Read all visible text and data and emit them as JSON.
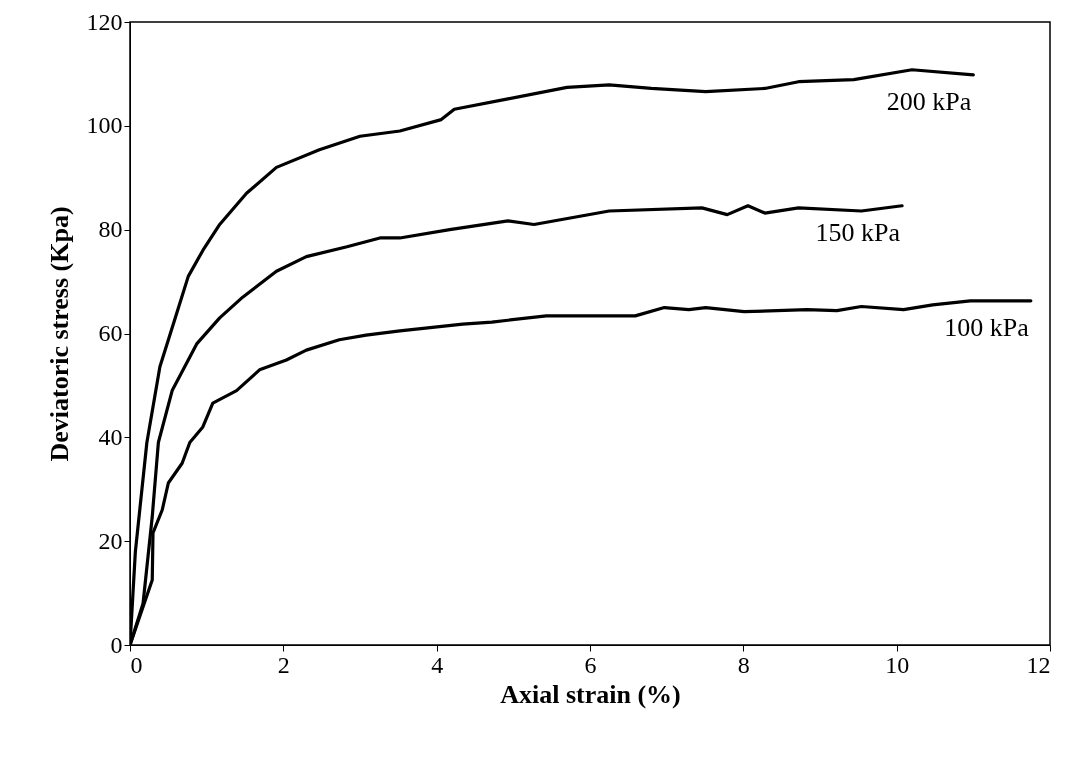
{
  "chart_data": {
    "type": "line",
    "xlabel": "Axial strain (%)",
    "ylabel": "Deviatoric stress (Kpa)",
    "xlim": [
      0,
      12
    ],
    "xticks": [
      0,
      2,
      4,
      6,
      8,
      10,
      12
    ],
    "ylim": [
      0,
      120
    ],
    "yticks": [
      0,
      20,
      40,
      60,
      80,
      100,
      120
    ],
    "grid": false,
    "marker": "none",
    "line_style": "solid",
    "series": [
      {
        "name": "200 kPa",
        "color": "#000000",
        "x": [
          0,
          0.07,
          0.22,
          0.39,
          0.59,
          0.76,
          0.95,
          1.17,
          1.52,
          1.91,
          2.47,
          3.0,
          3.52,
          4.06,
          4.23,
          4.93,
          5.7,
          6.25,
          6.8,
          7.51,
          8.28,
          8.72,
          9.44,
          10.2,
          11.0
        ],
        "values": [
          0,
          18,
          39,
          53.6,
          63,
          71,
          76,
          81,
          87,
          92,
          95.4,
          98,
          99,
          101.2,
          103.2,
          105.2,
          107.4,
          107.9,
          107.2,
          106.6,
          107.2,
          108.5,
          108.9,
          110.8,
          109.8
        ]
      },
      {
        "name": "150 kPa",
        "color": "#000000",
        "x": [
          0,
          0.17,
          0.29,
          0.37,
          0.55,
          0.87,
          1.17,
          1.47,
          1.91,
          2.3,
          2.83,
          3.26,
          3.52,
          4.17,
          4.93,
          5.27,
          6.25,
          7.46,
          7.79,
          8.06,
          8.28,
          8.72,
          9.54,
          10.07
        ],
        "values": [
          0,
          8,
          24.7,
          39,
          49,
          58,
          63,
          67,
          72,
          74.8,
          76.7,
          78.4,
          78.4,
          80,
          81.7,
          81,
          83.6,
          84.2,
          82.9,
          84.6,
          83.2,
          84.2,
          83.6,
          84.6
        ]
      },
      {
        "name": "100 kPa",
        "color": "#000000",
        "x": [
          0,
          0.29,
          0.3,
          0.42,
          0.5,
          0.68,
          0.78,
          0.95,
          1.08,
          1.39,
          1.69,
          2.04,
          2.3,
          2.73,
          3.08,
          3.52,
          4.34,
          4.72,
          5.43,
          6.59,
          6.97,
          7.29,
          7.51,
          8.01,
          8.83,
          9.22,
          9.54,
          10.09,
          10.47,
          10.96,
          11.75
        ],
        "values": [
          0,
          12.5,
          21.6,
          26,
          31.2,
          35,
          39,
          42,
          46.6,
          49,
          53,
          54.9,
          56.8,
          58.8,
          59.7,
          60.5,
          61.8,
          62.2,
          63.4,
          63.4,
          65,
          64.6,
          65,
          64.2,
          64.6,
          64.4,
          65.2,
          64.6,
          65.5,
          66.3,
          66.3
        ]
      }
    ]
  }
}
